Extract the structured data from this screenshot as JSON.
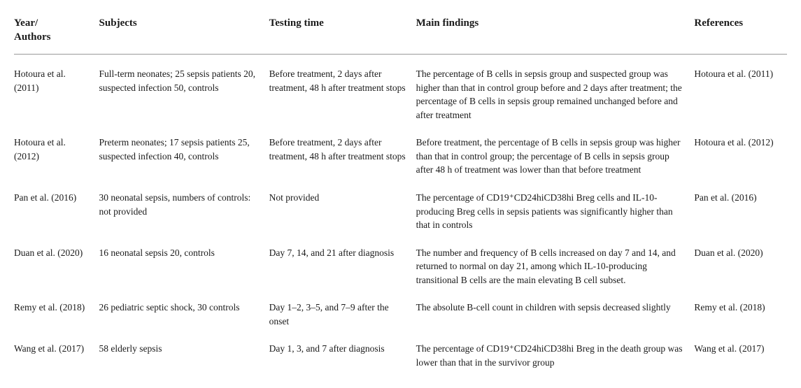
{
  "headers": {
    "authors": "Year/\nAuthors",
    "subjects": "Subjects",
    "testing": "Testing time",
    "findings": "Main findings",
    "references": "References"
  },
  "rows": [
    {
      "authors": "Hotoura et al. (2011)",
      "subjects": "Full-term neonates; 25 sepsis patients 20, suspected infection 50, controls",
      "testing": "Before treatment, 2 days after treatment, 48 h after treatment stops",
      "findings": "The percentage of B cells in sepsis group and suspected group was higher than that in control group before and 2 days after treatment; the percentage of B cells in sepsis group remained unchanged before and after treatment",
      "references": "Hotoura et al. (2011)"
    },
    {
      "authors": "Hotoura et al. (2012)",
      "subjects": "Preterm neonates; 17 sepsis patients 25, suspected infection 40, controls",
      "testing": "Before treatment, 2 days after treatment, 48 h after treatment stops",
      "findings": "Before treatment, the percentage of B cells in sepsis group was higher than that in control group; the percentage of B cells in sepsis group after 48 h of treatment was lower than that before treatment",
      "references": "Hotoura et al. (2012)"
    },
    {
      "authors": "Pan et al. (2016)",
      "subjects": "30 neonatal sepsis, numbers of controls: not provided",
      "testing": "Not provided",
      "findings": "The percentage of CD19⁺CD24hiCD38hi Breg cells and IL-10-producing Breg cells in sepsis patients was significantly higher than that in controls",
      "references": "Pan et al. (2016)"
    },
    {
      "authors": "Duan et al. (2020)",
      "subjects": "16 neonatal sepsis 20, controls",
      "testing": "Day 7, 14, and 21 after diagnosis",
      "findings": "The number and frequency of B cells increased on day 7 and 14, and returned to normal on day 21, among which IL-10-producing transitional B cells are the main elevating B cell subset.",
      "references": "Duan et al. (2020)"
    },
    {
      "authors": "Remy et al. (2018)",
      "subjects": "26 pediatric septic shock, 30 controls",
      "testing": "Day 1–2, 3–5, and 7–9 after the onset",
      "findings": "The absolute B-cell count in children with sepsis decreased slightly",
      "references": "Remy et al. (2018)"
    },
    {
      "authors": "Wang et al. (2017)",
      "subjects": "58 elderly sepsis",
      "testing": "Day 1, 3, and 7 after diagnosis",
      "findings": "The percentage of CD19⁺CD24hiCD38hi Breg in the death group was lower than that in the survivor group",
      "references": "Wang et al. (2017)"
    }
  ],
  "colors": {
    "text": "#1a1a1a",
    "border": "#999999",
    "background": "#ffffff"
  },
  "typography": {
    "header_fontsize": 15,
    "body_fontsize": 13.5,
    "font_family": "Georgia, Times New Roman, serif"
  }
}
